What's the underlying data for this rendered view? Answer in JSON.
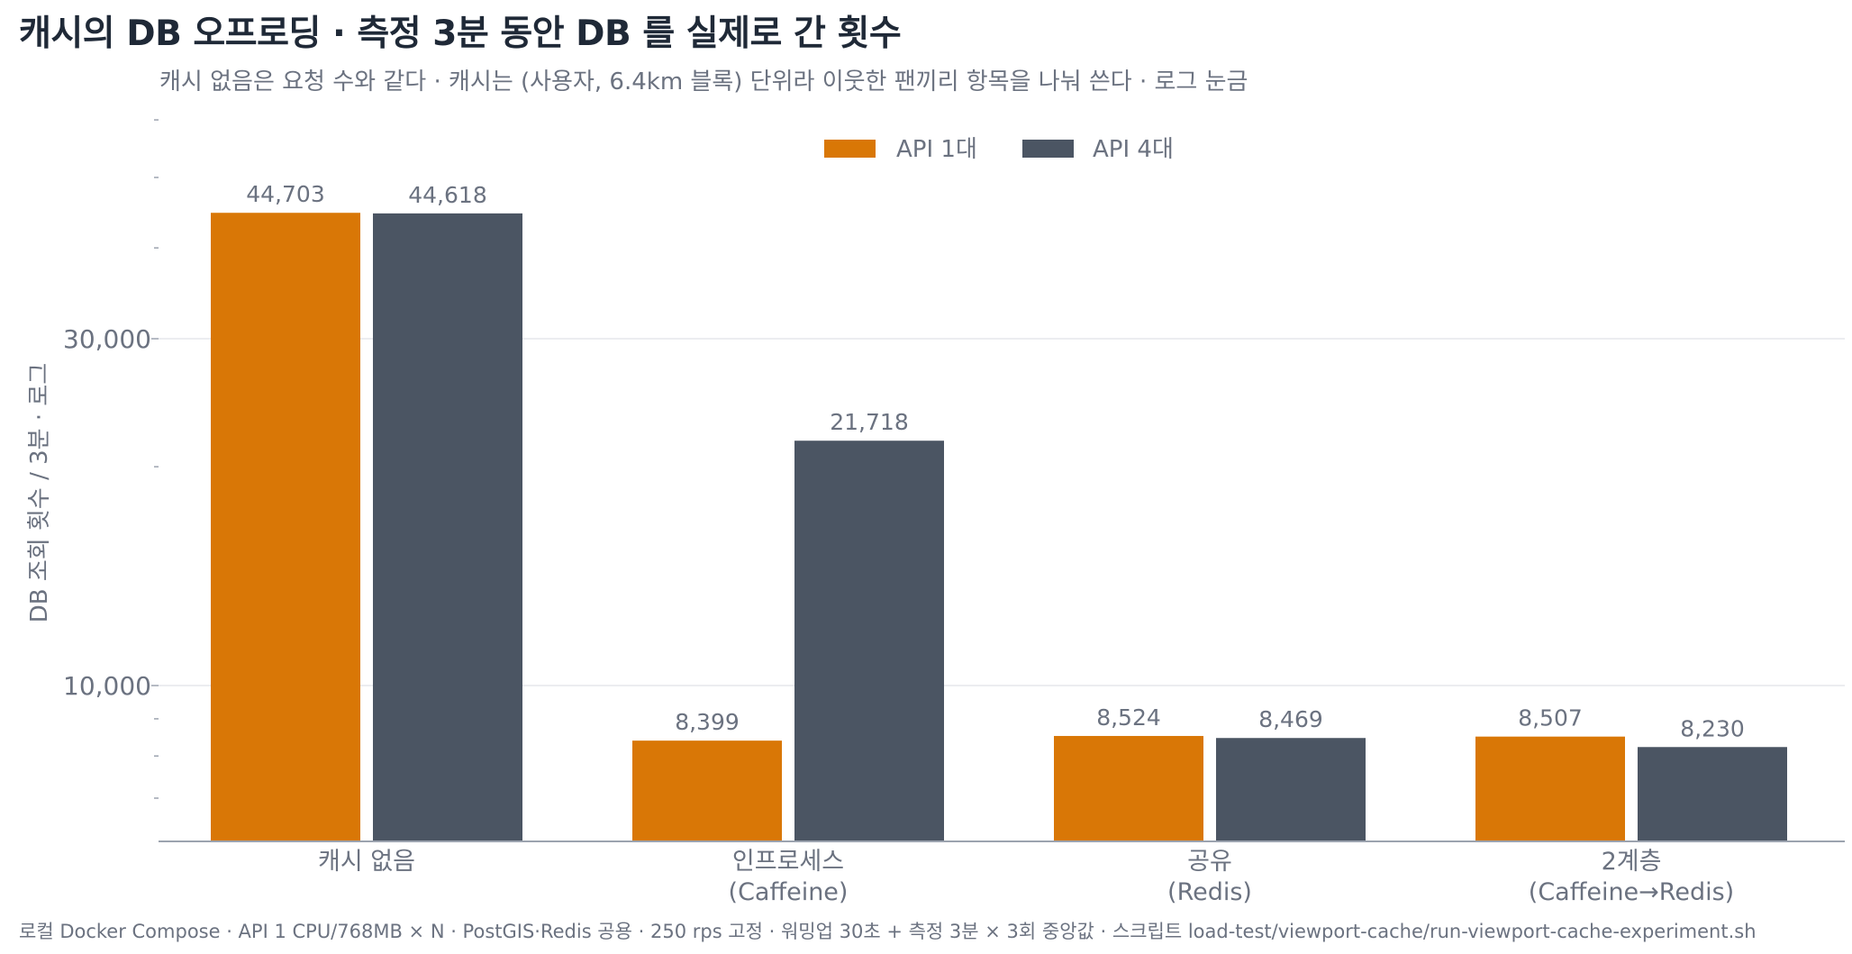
{
  "title": "캐시의 DB 오프로딩 · 측정 3분 동안 DB 를 실제로 간 횟수",
  "subtitle": "캐시 없음은 요청 수와 같다 · 캐시는 (사용자, 6.4km 블록) 단위라 이웃한 팬끼리 항목을 나눠 쓴다 · 로그 눈금",
  "footer": "로컬 Docker Compose · API 1 CPU/768MB × N · PostGIS·Redis 공용 · 250 rps 고정 · 워밍업 30초 + 측정 3분 × 3회 중앙값 · 스크립트 load-test/viewport-cache/run-viewport-cache-experiment.sh",
  "colors": {
    "api1": "#d97706",
    "api4": "#4b5563",
    "grid": "#e5e7eb",
    "axis": "#9ca3af",
    "text": "#6b7280"
  },
  "chart_data": {
    "type": "bar",
    "title": "캐시의 DB 오프로딩 · 측정 3분 동안 DB 를 실제로 간 횟수",
    "ylabel": "DB 조회 횟수 / 3분 · 로그",
    "xlabel": "",
    "yscale": "log",
    "ylim": [
      5000,
      70000
    ],
    "yticks": [
      10000,
      30000
    ],
    "ytick_labels": [
      "10,000",
      "30,000"
    ],
    "grid": "y-major",
    "legend_position": "top-center",
    "categories": [
      [
        "캐시 없음"
      ],
      [
        "인프로세스",
        "(Caffeine)"
      ],
      [
        "공유",
        "(Redis)"
      ],
      [
        "2계층",
        "(Caffeine→Redis)"
      ]
    ],
    "series": [
      {
        "name": "API 1대",
        "color": "#d97706",
        "values": [
          44703,
          8399,
          8524,
          8507
        ],
        "labels": [
          "44,703",
          "8,399",
          "8,524",
          "8,507"
        ]
      },
      {
        "name": "API 4대",
        "color": "#4b5563",
        "values": [
          44618,
          21718,
          8469,
          8230
        ],
        "labels": [
          "44,618",
          "21,718",
          "8,469",
          "8,230"
        ]
      }
    ]
  }
}
